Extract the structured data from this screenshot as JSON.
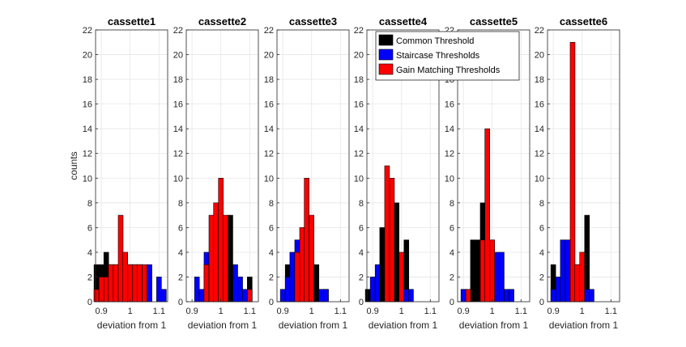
{
  "chart_data": {
    "type": "bar",
    "ylabel": "counts",
    "xlabel": "deviation from 1",
    "ylim": [
      0,
      22
    ],
    "yticks": [
      0,
      2,
      4,
      6,
      8,
      10,
      12,
      14,
      16,
      18,
      20,
      22
    ],
    "xlim": [
      0.88,
      1.13
    ],
    "xticks": [
      0.9,
      1,
      1.1
    ],
    "xtick_labels": [
      "0.9",
      "1",
      "1.1"
    ],
    "bin_width": 0.0167,
    "grid": true,
    "legend": {
      "position": "top-right",
      "entries": [
        {
          "name": "Common Threshold",
          "color": "#000000"
        },
        {
          "name": "Staircase Thresholds",
          "color": "#0000ff"
        },
        {
          "name": "Gain Matching Thresholds",
          "color": "#ff0000"
        }
      ]
    },
    "series_names": [
      "Common Threshold",
      "Staircase Thresholds",
      "Gain Matching Thresholds"
    ],
    "series_colors": [
      "#000000",
      "#0000ff",
      "#ff0000"
    ],
    "panels": [
      {
        "title": "cassette1",
        "bins": [
          0.883,
          0.9,
          0.917,
          0.933,
          0.95,
          0.967,
          0.983,
          1.0,
          1.017,
          1.033,
          1.05,
          1.067,
          1.083,
          1.1,
          1.117
        ],
        "series": [
          [
            3,
            3,
            4,
            3,
            3,
            3,
            3,
            3,
            3,
            3,
            2,
            0,
            0,
            0,
            0
          ],
          [
            0,
            0,
            0,
            0,
            0,
            0,
            0,
            0,
            0,
            0,
            0,
            3,
            0,
            2,
            1
          ],
          [
            1,
            2,
            2,
            3,
            3,
            7,
            4,
            3,
            3,
            3,
            3,
            0,
            0,
            0,
            0
          ]
        ]
      },
      {
        "title": "cassette2",
        "bins": [
          0.883,
          0.9,
          0.917,
          0.933,
          0.95,
          0.967,
          0.983,
          1.0,
          1.017,
          1.033,
          1.05,
          1.067,
          1.083,
          1.1,
          1.117
        ],
        "series": [
          [
            0,
            0,
            0,
            0,
            0,
            0,
            0,
            0,
            0,
            7,
            0,
            0,
            0,
            2,
            0
          ],
          [
            0,
            0,
            2,
            1,
            4,
            0,
            0,
            0,
            0,
            0,
            3,
            2,
            1,
            0,
            0
          ],
          [
            0,
            0,
            0,
            0,
            3,
            7,
            8,
            10,
            7,
            0,
            0,
            0,
            0,
            1,
            0
          ]
        ]
      },
      {
        "title": "cassette3",
        "bins": [
          0.883,
          0.9,
          0.917,
          0.933,
          0.95,
          0.967,
          0.983,
          1.0,
          1.017,
          1.033,
          1.05,
          1.067,
          1.083,
          1.1,
          1.117
        ],
        "series": [
          [
            0,
            0,
            3,
            0,
            0,
            0,
            0,
            0,
            3,
            0,
            1,
            0,
            0,
            0,
            0
          ],
          [
            0,
            1,
            2,
            4,
            5,
            0,
            0,
            0,
            0,
            1,
            1,
            0,
            0,
            0,
            0
          ],
          [
            0,
            0,
            0,
            0,
            4,
            6,
            10,
            7,
            0,
            0,
            0,
            0,
            0,
            0,
            0
          ]
        ]
      },
      {
        "title": "cassette4",
        "bins": [
          0.883,
          0.9,
          0.917,
          0.933,
          0.95,
          0.967,
          0.983,
          1.0,
          1.017,
          1.033,
          1.05,
          1.067,
          1.083,
          1.1,
          1.117
        ],
        "series": [
          [
            1,
            0,
            0,
            6,
            0,
            0,
            8,
            0,
            5,
            0,
            0,
            0,
            0,
            0,
            0
          ],
          [
            0,
            2,
            3,
            0,
            0,
            0,
            0,
            0,
            1,
            1,
            0,
            0,
            0,
            0,
            0
          ],
          [
            0,
            0,
            0,
            0,
            11,
            10,
            0,
            4,
            0,
            0,
            0,
            0,
            0,
            0,
            0
          ]
        ]
      },
      {
        "title": "cassette5",
        "bins": [
          0.883,
          0.9,
          0.917,
          0.933,
          0.95,
          0.967,
          0.983,
          1.0,
          1.017,
          1.033,
          1.05,
          1.067,
          1.083,
          1.1,
          1.117
        ],
        "series": [
          [
            0,
            0,
            0,
            5,
            5,
            8,
            0,
            0,
            0,
            0,
            0,
            0,
            0,
            0,
            0
          ],
          [
            0,
            1,
            0,
            0,
            0,
            0,
            0,
            3,
            4,
            4,
            1,
            1,
            0,
            0,
            0
          ],
          [
            0,
            0,
            1,
            0,
            0,
            5,
            14,
            5,
            0,
            0,
            0,
            0,
            0,
            0,
            0
          ]
        ]
      },
      {
        "title": "cassette6",
        "bins": [
          0.883,
          0.9,
          0.917,
          0.933,
          0.95,
          0.967,
          0.983,
          1.0,
          1.017,
          1.033,
          1.05,
          1.067,
          1.083,
          1.1,
          1.117
        ],
        "series": [
          [
            0,
            3,
            0,
            0,
            0,
            0,
            0,
            3,
            7,
            0,
            0,
            0,
            0,
            0,
            0
          ],
          [
            0,
            1,
            2,
            5,
            5,
            0,
            3,
            0,
            1,
            1,
            0,
            0,
            0,
            0,
            0
          ],
          [
            0,
            0,
            0,
            0,
            0,
            21,
            3,
            4,
            0,
            0,
            0,
            0,
            0,
            0,
            0
          ]
        ]
      }
    ]
  }
}
